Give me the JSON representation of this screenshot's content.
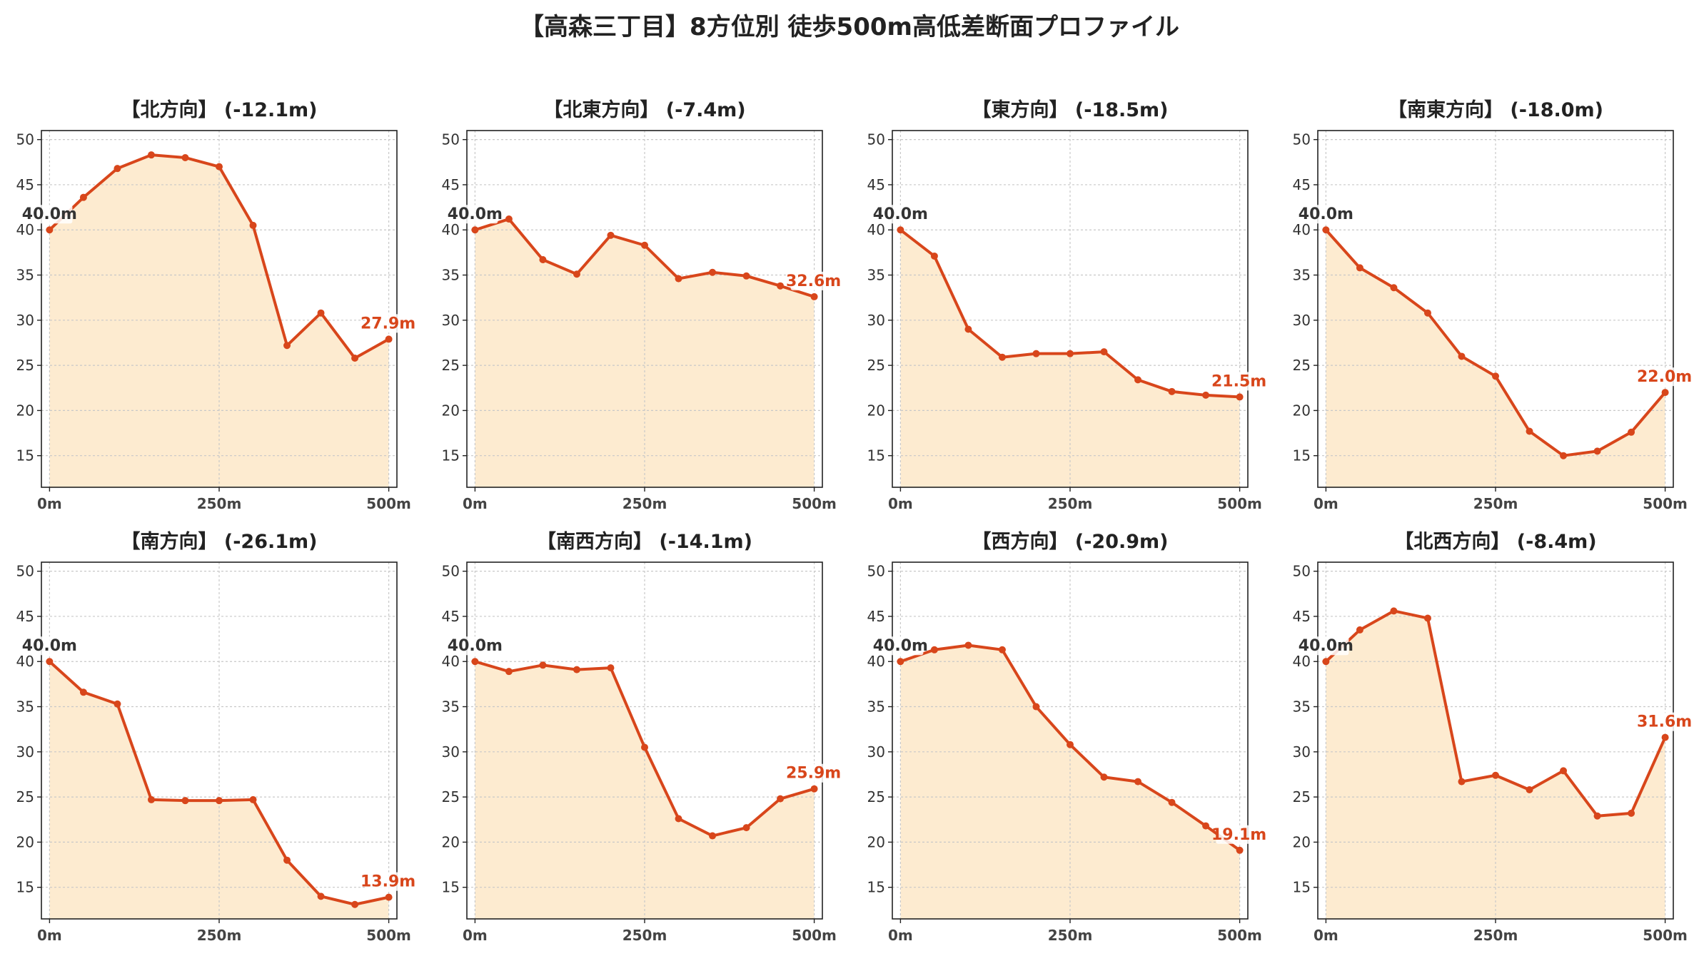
{
  "title": "【高森三丁目】8方位別 徒歩500m高低差断面プロファイル",
  "colors": {
    "line": "#d8461b",
    "fill": "#fdebd0",
    "grid": "#c8c8c8",
    "start_label": "#333333",
    "end_label": "#d8461b"
  },
  "chart_data": [
    {
      "type": "area",
      "title": "【北方向】 (-12.1m)",
      "x": [
        0,
        50,
        100,
        150,
        200,
        250,
        300,
        350,
        400,
        450,
        500
      ],
      "y": [
        40.0,
        43.6,
        46.8,
        48.3,
        48.0,
        47.0,
        40.5,
        27.2,
        30.8,
        25.8,
        27.9
      ],
      "start_label": "40.0m",
      "end_label": "27.9m",
      "xticks": [
        "0m",
        "250m",
        "500m"
      ],
      "xtick_values": [
        0,
        250,
        500
      ],
      "yticks": [
        15,
        20,
        25,
        30,
        35,
        40,
        45,
        50
      ],
      "ylim": [
        11.5,
        51
      ],
      "xlim": [
        -12,
        512
      ],
      "grid": true
    },
    {
      "type": "area",
      "title": "【北東方向】 (-7.4m)",
      "x": [
        0,
        50,
        100,
        150,
        200,
        250,
        300,
        350,
        400,
        450,
        500
      ],
      "y": [
        40.0,
        41.2,
        36.7,
        35.1,
        39.4,
        38.3,
        34.6,
        35.3,
        34.9,
        33.8,
        32.6
      ],
      "start_label": "40.0m",
      "end_label": "32.6m",
      "xticks": [
        "0m",
        "250m",
        "500m"
      ],
      "xtick_values": [
        0,
        250,
        500
      ],
      "yticks": [
        15,
        20,
        25,
        30,
        35,
        40,
        45,
        50
      ],
      "ylim": [
        11.5,
        51
      ],
      "xlim": [
        -12,
        512
      ],
      "grid": true
    },
    {
      "type": "area",
      "title": "【東方向】 (-18.5m)",
      "x": [
        0,
        50,
        100,
        150,
        200,
        250,
        300,
        350,
        400,
        450,
        500
      ],
      "y": [
        40.0,
        37.1,
        29.0,
        25.9,
        26.3,
        26.3,
        26.5,
        23.4,
        22.1,
        21.7,
        21.5
      ],
      "start_label": "40.0m",
      "end_label": "21.5m",
      "xticks": [
        "0m",
        "250m",
        "500m"
      ],
      "xtick_values": [
        0,
        250,
        500
      ],
      "yticks": [
        15,
        20,
        25,
        30,
        35,
        40,
        45,
        50
      ],
      "ylim": [
        11.5,
        51
      ],
      "xlim": [
        -12,
        512
      ],
      "grid": true
    },
    {
      "type": "area",
      "title": "【南東方向】 (-18.0m)",
      "x": [
        0,
        50,
        100,
        150,
        200,
        250,
        300,
        350,
        400,
        450,
        500
      ],
      "y": [
        40.0,
        35.8,
        33.6,
        30.8,
        26.0,
        23.8,
        17.7,
        15.0,
        15.5,
        17.6,
        22.0
      ],
      "start_label": "40.0m",
      "end_label": "22.0m",
      "xticks": [
        "0m",
        "250m",
        "500m"
      ],
      "xtick_values": [
        0,
        250,
        500
      ],
      "yticks": [
        15,
        20,
        25,
        30,
        35,
        40,
        45,
        50
      ],
      "ylim": [
        11.5,
        51
      ],
      "xlim": [
        -12,
        512
      ],
      "grid": true
    },
    {
      "type": "area",
      "title": "【南方向】 (-26.1m)",
      "x": [
        0,
        50,
        100,
        150,
        200,
        250,
        300,
        350,
        400,
        450,
        500
      ],
      "y": [
        40.0,
        36.6,
        35.3,
        24.7,
        24.6,
        24.6,
        24.7,
        18.0,
        14.0,
        13.1,
        13.9
      ],
      "start_label": "40.0m",
      "end_label": "13.9m",
      "xticks": [
        "0m",
        "250m",
        "500m"
      ],
      "xtick_values": [
        0,
        250,
        500
      ],
      "yticks": [
        15,
        20,
        25,
        30,
        35,
        40,
        45,
        50
      ],
      "ylim": [
        11.5,
        51
      ],
      "xlim": [
        -12,
        512
      ],
      "grid": true
    },
    {
      "type": "area",
      "title": "【南西方向】 (-14.1m)",
      "x": [
        0,
        50,
        100,
        150,
        200,
        250,
        300,
        350,
        400,
        450,
        500
      ],
      "y": [
        40.0,
        38.9,
        39.6,
        39.1,
        39.3,
        30.5,
        22.6,
        20.7,
        21.6,
        24.8,
        25.9
      ],
      "start_label": "40.0m",
      "end_label": "25.9m",
      "xticks": [
        "0m",
        "250m",
        "500m"
      ],
      "xtick_values": [
        0,
        250,
        500
      ],
      "yticks": [
        15,
        20,
        25,
        30,
        35,
        40,
        45,
        50
      ],
      "ylim": [
        11.5,
        51
      ],
      "xlim": [
        -12,
        512
      ],
      "grid": true
    },
    {
      "type": "area",
      "title": "【西方向】 (-20.9m)",
      "x": [
        0,
        50,
        100,
        150,
        200,
        250,
        300,
        350,
        400,
        450,
        500
      ],
      "y": [
        40.0,
        41.3,
        41.8,
        41.3,
        35.0,
        30.8,
        27.2,
        26.7,
        24.4,
        21.8,
        19.1
      ],
      "start_label": "40.0m",
      "end_label": "19.1m",
      "xticks": [
        "0m",
        "250m",
        "500m"
      ],
      "xtick_values": [
        0,
        250,
        500
      ],
      "yticks": [
        15,
        20,
        25,
        30,
        35,
        40,
        45,
        50
      ],
      "ylim": [
        11.5,
        51
      ],
      "xlim": [
        -12,
        512
      ],
      "grid": true
    },
    {
      "type": "area",
      "title": "【北西方向】 (-8.4m)",
      "x": [
        0,
        50,
        100,
        150,
        200,
        250,
        300,
        350,
        400,
        450,
        500
      ],
      "y": [
        40.0,
        43.5,
        45.6,
        44.8,
        26.7,
        27.4,
        25.8,
        27.9,
        22.9,
        23.2,
        31.6
      ],
      "start_label": "40.0m",
      "end_label": "31.6m",
      "xticks": [
        "0m",
        "250m",
        "500m"
      ],
      "xtick_values": [
        0,
        250,
        500
      ],
      "yticks": [
        15,
        20,
        25,
        30,
        35,
        40,
        45,
        50
      ],
      "ylim": [
        11.5,
        51
      ],
      "xlim": [
        -12,
        512
      ],
      "grid": true
    }
  ]
}
